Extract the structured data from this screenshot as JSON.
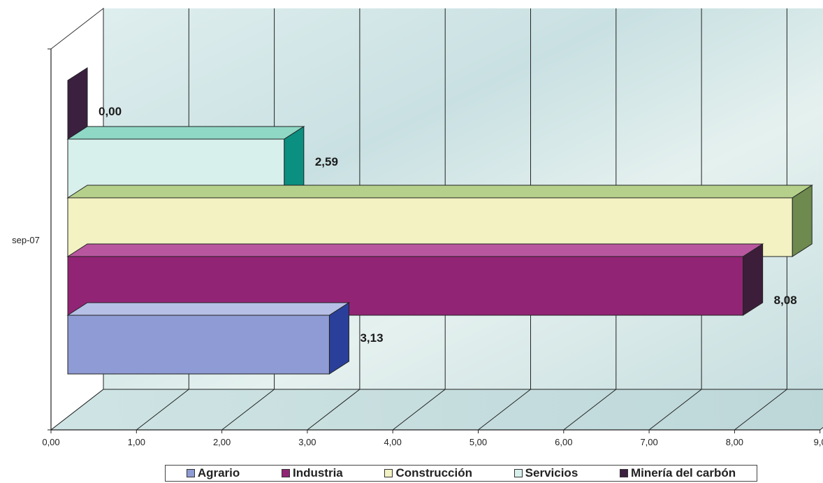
{
  "chart_data": {
    "type": "bar",
    "orientation": "horizontal",
    "style": "3d",
    "categories": [
      "sep-07"
    ],
    "series": [
      {
        "name": "Agrario",
        "values": [
          3.13
        ],
        "label": "3,13",
        "color": "#8e9bd4",
        "side_color": "#2a3f9a",
        "top_color": "#b6c0e6"
      },
      {
        "name": "Industria",
        "values": [
          8.08
        ],
        "label": "8,08",
        "color": "#922475",
        "side_color": "#3c1e3a",
        "top_color": "#b8579f"
      },
      {
        "name": "Construcción",
        "values": [
          8.67
        ],
        "label": "",
        "color": "#f2f2c2",
        "side_color": "#6e8a4e",
        "top_color": "#b5d08a"
      },
      {
        "name": "Servicios",
        "values": [
          2.59
        ],
        "label": "2,59",
        "color": "#d8f0ec",
        "side_color": "#0a8f80",
        "top_color": "#8fd8c5"
      },
      {
        "name": "Minería del carbón",
        "values": [
          0.0
        ],
        "label": "0,00",
        "color": "#3b2040",
        "side_color": "#3b2040",
        "top_color": "#5a3a60"
      }
    ],
    "x_ticks": [
      "0,00",
      "1,00",
      "2,00",
      "3,00",
      "4,00",
      "5,00",
      "6,00",
      "7,00",
      "8,00",
      "9,0"
    ],
    "xlim": [
      0,
      9
    ],
    "grid": true,
    "legend": "bottom"
  }
}
